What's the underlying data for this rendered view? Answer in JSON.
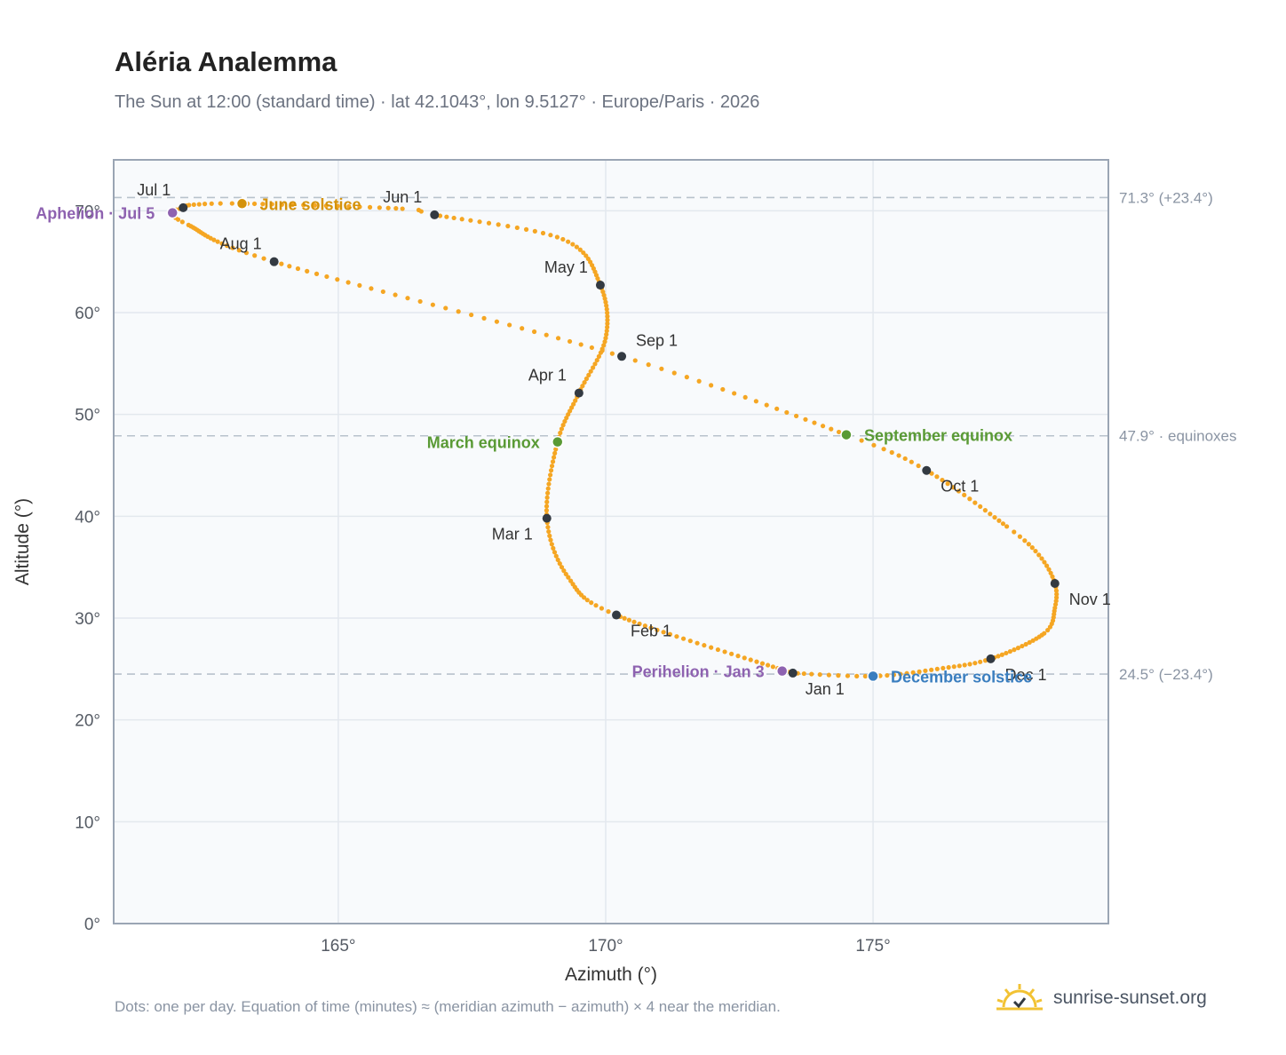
{
  "title": "Aléria Analemma",
  "subtitle": "The Sun at 12:00 (standard time) · lat 42.1043°, lon 9.5127° · Europe/Paris · 2026",
  "footnote": "Dots: one per day. Equation of time (minutes) ≈ (meridian azimuth − azimuth) × 4 near the meridian.",
  "brand": {
    "text": "sunrise-sunset.org",
    "icon": "sun-icon"
  },
  "colors": {
    "curve": "#f5a623",
    "month_dot": "#333a42",
    "solstice_june": "#d4920a",
    "solstice_december": "#3a7ebf",
    "equinox": "#5a9a35",
    "apsis": "#8e62b0",
    "reference_line": "#b8c2cc",
    "plot_bg": "#f8fafc"
  },
  "chart_data": {
    "type": "scatter",
    "xlabel": "Azimuth (°)",
    "ylabel": "Altitude (°)",
    "xlim": [
      160.8,
      179.4
    ],
    "ylim": [
      0,
      75
    ],
    "xticks": [
      165,
      170,
      175
    ],
    "xtick_labels": [
      "165°",
      "170°",
      "175°"
    ],
    "yticks": [
      0,
      10,
      20,
      30,
      40,
      50,
      60,
      70
    ],
    "ytick_labels": [
      "0°",
      "10°",
      "20°",
      "30°",
      "40°",
      "50°",
      "60°",
      "70°"
    ],
    "grid": true,
    "reference_lines": [
      {
        "y": 71.3,
        "label": "71.3° (+23.4°)"
      },
      {
        "y": 47.9,
        "label": "47.9° · equinoxes"
      },
      {
        "y": 24.5,
        "label": "24.5° (−23.4°)"
      }
    ],
    "curve_anchors": [
      {
        "doy": 1,
        "az": 173.5,
        "alt": 24.6
      },
      {
        "doy": 32,
        "az": 170.2,
        "alt": 30.3
      },
      {
        "doy": 60,
        "az": 168.9,
        "alt": 39.8
      },
      {
        "doy": 91,
        "az": 169.5,
        "alt": 52.1
      },
      {
        "doy": 121,
        "az": 169.9,
        "alt": 62.7
      },
      {
        "doy": 152,
        "az": 166.8,
        "alt": 69.6
      },
      {
        "doy": 182,
        "az": 162.1,
        "alt": 70.3
      },
      {
        "doy": 213,
        "az": 163.8,
        "alt": 65.0
      },
      {
        "doy": 244,
        "az": 170.3,
        "alt": 55.7
      },
      {
        "doy": 274,
        "az": 176.0,
        "alt": 44.5
      },
      {
        "doy": 305,
        "az": 178.4,
        "alt": 33.4
      },
      {
        "doy": 335,
        "az": 177.2,
        "alt": 26.0
      },
      {
        "doy": 365,
        "az": 173.5,
        "alt": 24.6
      }
    ],
    "curve_points": [
      {
        "doy": 45,
        "az": 169.3,
        "alt": 34.0
      },
      {
        "doy": 78,
        "az": 169.1,
        "alt": 47.3
      },
      {
        "doy": 106,
        "az": 170.0,
        "alt": 57.5
      },
      {
        "doy": 136,
        "az": 169.2,
        "alt": 67.2
      },
      {
        "doy": 155,
        "az": 166.2,
        "alt": 70.2
      },
      {
        "doy": 171,
        "az": 163.3,
        "alt": 70.7
      },
      {
        "doy": 177,
        "az": 162.3,
        "alt": 70.6
      },
      {
        "doy": 186,
        "az": 161.9,
        "alt": 69.8
      },
      {
        "doy": 193,
        "az": 162.2,
        "alt": 68.6
      },
      {
        "doy": 265,
        "az": 174.5,
        "alt": 48.0
      },
      {
        "doy": 290,
        "az": 177.5,
        "alt": 39.0
      },
      {
        "doy": 297,
        "az": 178.1,
        "alt": 36.2
      },
      {
        "doy": 312,
        "az": 178.4,
        "alt": 31.0
      },
      {
        "doy": 320,
        "az": 178.2,
        "alt": 28.5
      },
      {
        "doy": 345,
        "az": 176.2,
        "alt": 25.0
      },
      {
        "doy": 355,
        "az": 175.0,
        "alt": 24.3
      }
    ],
    "month_markers": [
      {
        "label": "Jan 1",
        "az": 173.5,
        "alt": 24.6,
        "pos": "below"
      },
      {
        "label": "Feb 1",
        "az": 170.2,
        "alt": 30.3,
        "pos": "below-right"
      },
      {
        "label": "Mar 1",
        "az": 168.9,
        "alt": 39.8,
        "pos": "below-left"
      },
      {
        "label": "Apr 1",
        "az": 169.5,
        "alt": 52.1,
        "pos": "above-left"
      },
      {
        "label": "May 1",
        "az": 169.9,
        "alt": 62.7,
        "pos": "above-left"
      },
      {
        "label": "Jun 1",
        "az": 166.8,
        "alt": 69.6,
        "pos": "above-left"
      },
      {
        "label": "Jul 1",
        "az": 162.1,
        "alt": 70.3,
        "pos": "above-left"
      },
      {
        "label": "Aug 1",
        "az": 163.8,
        "alt": 65.0,
        "pos": "above-left"
      },
      {
        "label": "Sep 1",
        "az": 170.3,
        "alt": 55.7,
        "pos": "above-right"
      },
      {
        "label": "Oct 1",
        "az": 176.0,
        "alt": 44.5,
        "pos": "below-right"
      },
      {
        "label": "Nov 1",
        "az": 178.4,
        "alt": 33.4,
        "pos": "right"
      },
      {
        "label": "Dec 1",
        "az": 177.2,
        "alt": 26.0,
        "pos": "right"
      }
    ],
    "events": [
      {
        "label": "June solstice",
        "az": 163.2,
        "alt": 70.7,
        "color": "#d4920a",
        "pos": "right"
      },
      {
        "label": "December solstice",
        "az": 175.0,
        "alt": 24.3,
        "color": "#3a7ebf",
        "pos": "right"
      },
      {
        "label": "March equinox",
        "az": 169.1,
        "alt": 47.3,
        "color": "#5a9a35",
        "pos": "left"
      },
      {
        "label": "September equinox",
        "az": 174.5,
        "alt": 48.0,
        "color": "#5a9a35",
        "pos": "right"
      },
      {
        "label": "Aphelion · Jul 5",
        "az": 161.9,
        "alt": 69.8,
        "color": "#8e62b0",
        "pos": "left"
      },
      {
        "label": "Perihelion · Jan 3",
        "az": 173.3,
        "alt": 24.8,
        "color": "#8e62b0",
        "pos": "left"
      }
    ]
  }
}
